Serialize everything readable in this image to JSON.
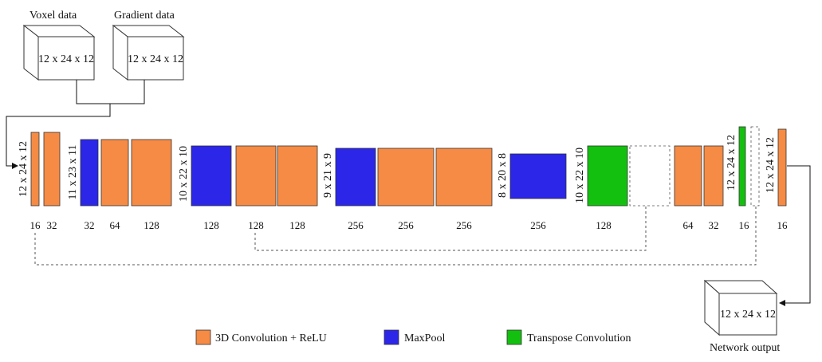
{
  "colors": {
    "conv": "#F58B45",
    "pool": "#2B26E8",
    "transpose": "#14C00F",
    "stroke": "#333333"
  },
  "inputs": [
    {
      "title": "Voxel data",
      "dims": "12 x 24 x 12"
    },
    {
      "title": "Gradient data",
      "dims": "12 x 24 x 12"
    }
  ],
  "output": {
    "title": "Network output",
    "dims": "12 x 24 x 12"
  },
  "layers": [
    {
      "kind": "conv",
      "channels": "16"
    },
    {
      "kind": "conv",
      "channels": "32"
    },
    {
      "kind": "pool",
      "channels": "32"
    },
    {
      "kind": "conv",
      "channels": "64"
    },
    {
      "kind": "conv",
      "channels": "128"
    },
    {
      "kind": "pool",
      "channels": "128"
    },
    {
      "kind": "conv",
      "channels": "128"
    },
    {
      "kind": "conv",
      "channels": "128"
    },
    {
      "kind": "pool",
      "channels": "256"
    },
    {
      "kind": "conv",
      "channels": "256"
    },
    {
      "kind": "conv",
      "channels": "256"
    },
    {
      "kind": "pool",
      "channels": "256"
    },
    {
      "kind": "transpose",
      "channels": "128"
    },
    {
      "kind": "concat",
      "channels": ""
    },
    {
      "kind": "conv",
      "channels": "64"
    },
    {
      "kind": "conv",
      "channels": "32"
    },
    {
      "kind": "transpose",
      "channels": "16"
    },
    {
      "kind": "concat",
      "channels": ""
    },
    {
      "kind": "conv",
      "channels": "16"
    }
  ],
  "dim_labels": [
    "12 x 24 x 12",
    "11 x 23 x 11",
    "10 x 22 x 10",
    "9 x 21 x 9",
    "8 x 20 x 8",
    "10 x 22 x 10",
    "12 x 24 x 12",
    "12 x 24 x 12"
  ],
  "legend": [
    {
      "kind": "conv",
      "label": "3D Convolution + ReLU"
    },
    {
      "kind": "pool",
      "label": "MaxPool"
    },
    {
      "kind": "transpose",
      "label": "Transpose Convolution"
    }
  ]
}
